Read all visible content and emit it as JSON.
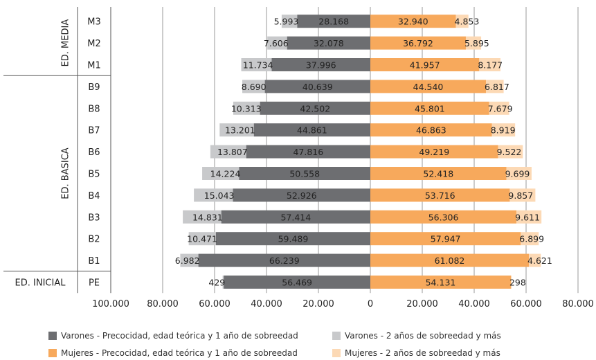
{
  "chart_data": {
    "type": "bar",
    "orientation": "horizontal-population-pyramid",
    "title": "",
    "xlabel": "",
    "ylabel": "",
    "xlim": [
      -100000,
      80000
    ],
    "x_ticks": [
      -100000,
      -80000,
      -60000,
      -40000,
      -20000,
      0,
      20000,
      40000,
      60000,
      80000
    ],
    "x_tick_labels": [
      "100.000",
      "80.000",
      "60.000",
      "40.000",
      "20.000",
      "0",
      "20.000",
      "40.000",
      "60.000",
      "80.000"
    ],
    "grid": "vertical",
    "legend_position": "bottom",
    "categories": [
      "M3",
      "M2",
      "M1",
      "B9",
      "B8",
      "B7",
      "B6",
      "B5",
      "B4",
      "B3",
      "B2",
      "B1",
      "PE"
    ],
    "groups": [
      {
        "label": "ED. MEDIA",
        "members": [
          "M3",
          "M2",
          "M1"
        ]
      },
      {
        "label": "ED. BASICA",
        "members": [
          "B9",
          "B8",
          "B7",
          "B6",
          "B5",
          "B4",
          "B3",
          "B2",
          "B1"
        ]
      },
      {
        "label": "ED. INICIAL",
        "members": [
          "PE"
        ]
      }
    ],
    "series": [
      {
        "name": "Varones - Precocidad, edad teórica y 1 año de sobreedad",
        "side": "left",
        "color": "#6d6e71",
        "values": [
          28168,
          32078,
          37996,
          40639,
          42502,
          44861,
          47816,
          50558,
          52926,
          57414,
          59489,
          66239,
          56469
        ],
        "labels": [
          "28.168",
          "32.078",
          "37.996",
          "40.639",
          "42.502",
          "44.861",
          "47.816",
          "50.558",
          "52.926",
          "57.414",
          "59.489",
          "66.239",
          "56.469"
        ]
      },
      {
        "name": "Varones - 2 años de sobreedad y más",
        "side": "left",
        "color": "#c8c9cb",
        "values": [
          5993,
          7606,
          11734,
          8690,
          10313,
          13201,
          13807,
          14224,
          15043,
          14831,
          10471,
          6982,
          429
        ],
        "labels": [
          "5.993",
          "7.606",
          "11.734",
          "8.690",
          "10.313",
          "13.201",
          "13.807",
          "14.224",
          "15.043",
          "14.831",
          "10.471",
          "6.982",
          "429"
        ]
      },
      {
        "name": "Mujeres - Precocidad, edad teórica y 1 año de sobreedad",
        "side": "right",
        "color": "#f7a95c",
        "values": [
          32940,
          36792,
          41957,
          44540,
          45801,
          46863,
          49219,
          52418,
          53716,
          56306,
          57947,
          61082,
          54131
        ],
        "labels": [
          "32.940",
          "36.792",
          "41.957",
          "44.540",
          "45.801",
          "46.863",
          "49.219",
          "52.418",
          "53.716",
          "56.306",
          "57.947",
          "61.082",
          "54.131"
        ]
      },
      {
        "name": "Mujeres - 2 años de sobreedad y más",
        "side": "right",
        "color": "#fcd9b5",
        "values": [
          4853,
          5895,
          8177,
          6817,
          7679,
          8919,
          9522,
          9699,
          9857,
          9611,
          6899,
          4621,
          298
        ],
        "labels": [
          "4.853",
          "5.895",
          "8.177",
          "6.817",
          "7.679",
          "8.919",
          "9.522",
          "9.699",
          "9.857",
          "9.611",
          "6.899",
          "4.621",
          "298"
        ]
      }
    ]
  }
}
